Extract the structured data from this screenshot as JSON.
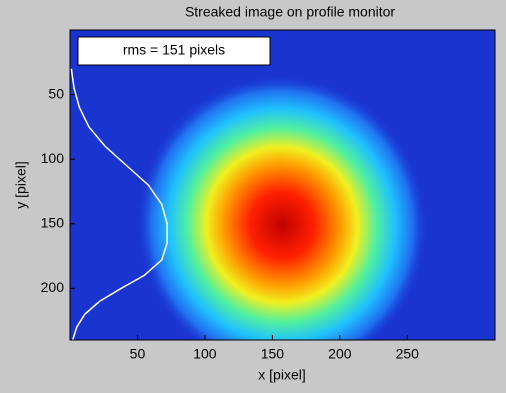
{
  "chart_data": {
    "type": "image-profile",
    "title": "Streaked image on profile monitor",
    "xlabel": "x [pixel]",
    "ylabel": "y [pixel]",
    "annotation": "rms = 151 pixels",
    "xlim": [
      0,
      315
    ],
    "ylim": [
      0,
      240
    ],
    "y_reversed": true,
    "xticks": [
      50,
      100,
      150,
      200,
      250
    ],
    "yticks": [
      50,
      100,
      150,
      200
    ],
    "profile": {
      "color": "#ffffff",
      "x": [
        1,
        3,
        7,
        14,
        26,
        42,
        58,
        68,
        72,
        72,
        68,
        55,
        38,
        22,
        11,
        5,
        2
      ],
      "y": [
        30,
        45,
        60,
        75,
        90,
        105,
        120,
        135,
        150,
        165,
        178,
        190,
        200,
        210,
        220,
        230,
        240
      ]
    }
  }
}
